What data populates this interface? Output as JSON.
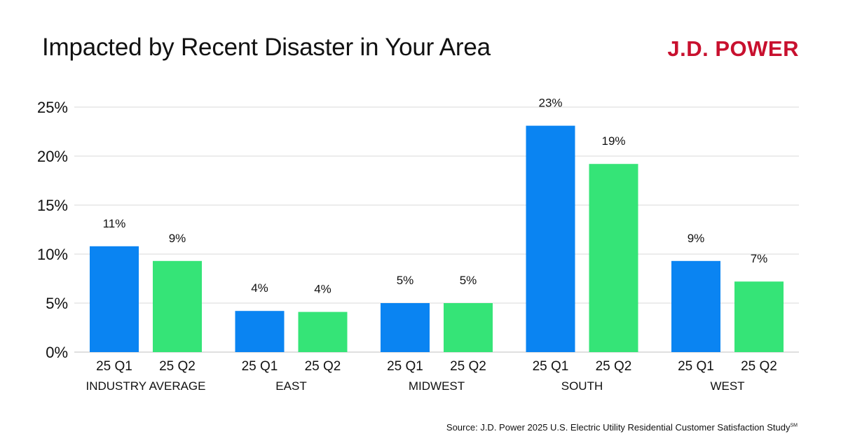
{
  "title": "Impacted by Recent Disaster in Your Area",
  "logo": "J.D. POWER",
  "source": "Source: J.D. Power 2025 U.S. Electric Utility Residential Customer Satisfaction Study",
  "source_mark": "SM",
  "colors": {
    "q1": "#0a84f2",
    "q2": "#35e477",
    "logo": "#c8102e",
    "grid": "#d9d9d9"
  },
  "chart_data": {
    "type": "bar",
    "groups": [
      "INDUSTRY AVERAGE",
      "EAST",
      "MIDWEST",
      "SOUTH",
      "WEST"
    ],
    "sub_categories": [
      "25 Q1",
      "25 Q2"
    ],
    "series": [
      {
        "values": [
          10.8,
          4.2,
          5.0,
          23.1,
          9.3
        ],
        "labels": [
          "11%",
          "4%",
          "5%",
          "23%",
          "9%"
        ]
      },
      {
        "values": [
          9.3,
          4.1,
          5.0,
          19.2,
          7.2
        ],
        "labels": [
          "9%",
          "4%",
          "5%",
          "19%",
          "7%"
        ]
      }
    ],
    "ylim": [
      0,
      25
    ],
    "yticks": [
      0,
      5,
      10,
      15,
      20,
      25
    ],
    "ytick_labels": [
      "0%",
      "5%",
      "10%",
      "15%",
      "20%",
      "25%"
    ],
    "grid": true,
    "legend": "none"
  }
}
